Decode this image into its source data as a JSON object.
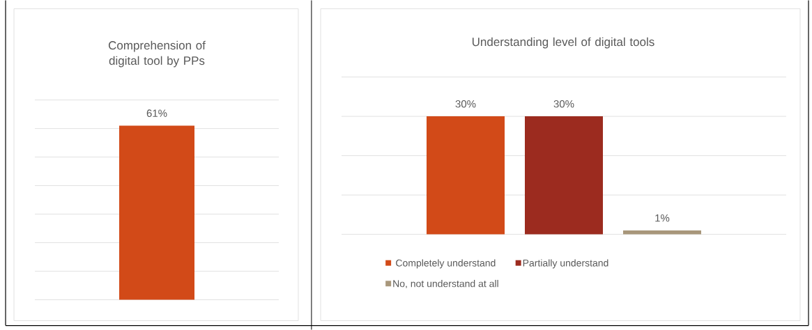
{
  "chart_data": [
    {
      "type": "bar",
      "title": "Comprehension of digital tool by PPs",
      "categories": [
        null
      ],
      "values": [
        61
      ],
      "color": "#d24a18",
      "value_labels": [
        "61%"
      ],
      "ylim": [
        0,
        70
      ],
      "yticks": [
        {
          "value": 0,
          "label": null
        },
        {
          "value": 10,
          "label": null
        },
        {
          "value": 20,
          "label": null
        },
        {
          "value": 30,
          "label": null
        },
        {
          "value": 40,
          "label": null
        },
        {
          "value": 50,
          "label": null
        },
        {
          "value": 60,
          "label": null
        },
        {
          "value": 70,
          "label": null
        }
      ],
      "grid": "y"
    },
    {
      "type": "bar",
      "title": "Understanding level of digital tools",
      "categories": [
        null
      ],
      "series": [
        {
          "name": "Completely understand",
          "color": "#d24a18",
          "values": [
            30
          ],
          "value_labels": [
            "30%"
          ]
        },
        {
          "name": "Partially understand",
          "color": "#9c2b1f",
          "values": [
            30
          ],
          "value_labels": [
            "30%"
          ]
        },
        {
          "name": "No, not understand at all",
          "color": "#a8977b",
          "values": [
            1
          ],
          "value_labels": [
            "1%"
          ]
        }
      ],
      "ylim": [
        0,
        40
      ],
      "yticks": [
        {
          "value": 0,
          "label": null
        },
        {
          "value": 10,
          "label": null
        },
        {
          "value": 20,
          "label": null
        },
        {
          "value": 30,
          "label": null
        },
        {
          "value": 40,
          "label": null
        }
      ],
      "grid": "y",
      "legend": "bottom"
    }
  ]
}
